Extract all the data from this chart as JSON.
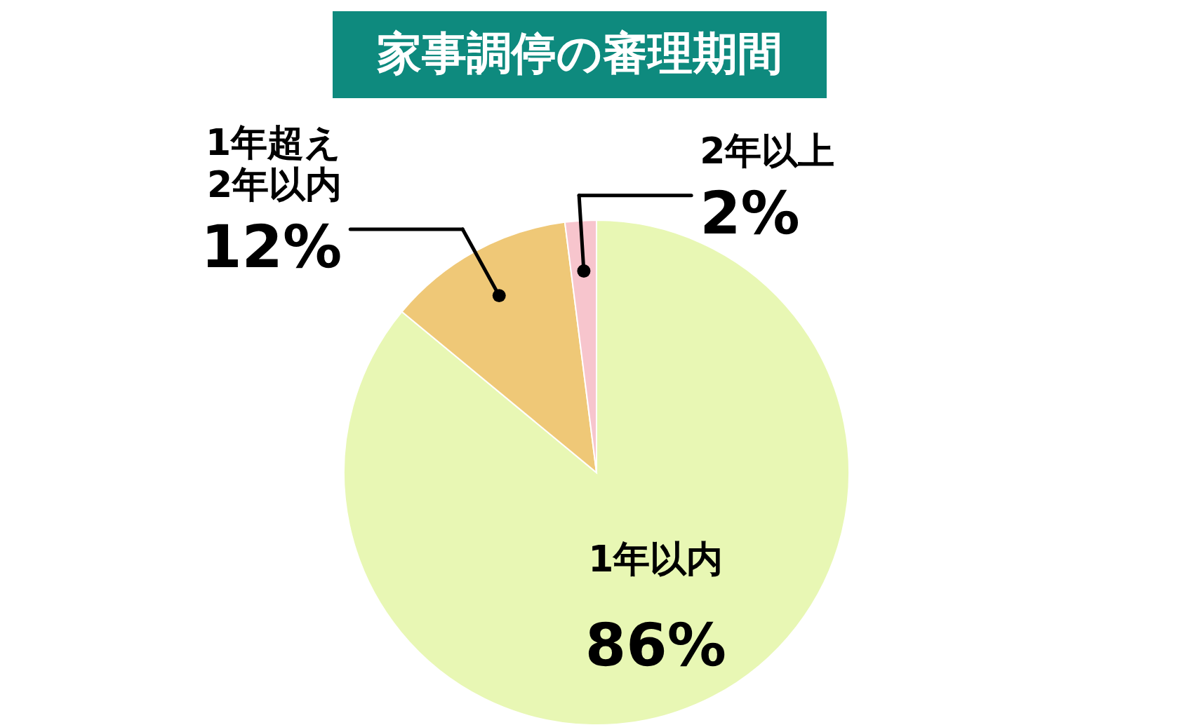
{
  "chart_data": {
    "type": "pie",
    "title": "家事調停の審理期間",
    "categories": [
      "1年以内",
      "1年超え\n2年以内",
      "2年以上"
    ],
    "values": [
      86,
      12,
      2
    ],
    "colors": [
      "#e8f7b4",
      "#efc877",
      "#f7c5cd"
    ],
    "value_labels": [
      "86%",
      "12%",
      "2%"
    ]
  }
}
